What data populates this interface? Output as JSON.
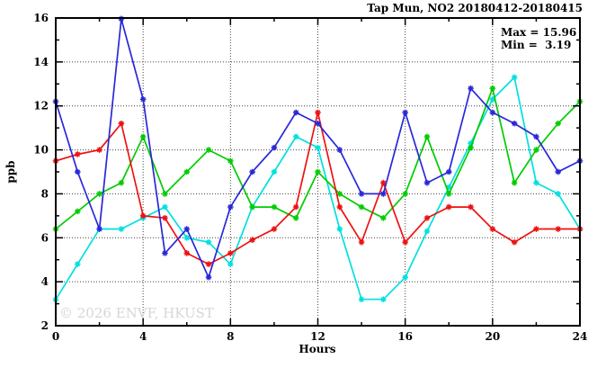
{
  "title": "Tap Mun, NO2 20180412-20180415",
  "annotation": {
    "max_label": "Max = 15.96",
    "min_label": "Min =  3.19"
  },
  "watermark": "© 2026 ENVF, HKUST",
  "chart_data": {
    "type": "line",
    "title": "Tap Mun, NO2 20180412-20180415",
    "xlabel": "Hours",
    "ylabel": "ppb",
    "xlim": [
      0,
      24
    ],
    "ylim": [
      2,
      16
    ],
    "x_tick_step": 2,
    "x_labeled_ticks": [
      0,
      4,
      8,
      12,
      16,
      20,
      24
    ],
    "y_tick_step": 1,
    "y_labeled_ticks": [
      2,
      4,
      6,
      8,
      10,
      12,
      14,
      16
    ],
    "grid_x": [
      4,
      8,
      12,
      16,
      20
    ],
    "grid_y": [
      4,
      6,
      8,
      10,
      12,
      14
    ],
    "legend": "none",
    "grid": "dotted",
    "max_value": 15.96,
    "min_value": 3.19,
    "x": [
      0,
      1,
      2,
      3,
      4,
      5,
      6,
      7,
      8,
      9,
      10,
      11,
      12,
      13,
      14,
      15,
      16,
      17,
      18,
      19,
      20,
      21,
      22,
      23,
      24
    ],
    "series": [
      {
        "name": "cyan-line",
        "color": "#00e0e0",
        "values": [
          3.19,
          4.8,
          6.4,
          6.4,
          6.9,
          7.4,
          6.0,
          5.8,
          4.8,
          7.4,
          9.0,
          10.6,
          10.1,
          6.4,
          3.2,
          3.2,
          4.2,
          6.3,
          8.3,
          10.3,
          12.3,
          13.3,
          8.5,
          8.0,
          6.4
        ]
      },
      {
        "name": "green-line",
        "color": "#00cc00",
        "values": [
          6.4,
          7.2,
          8.0,
          8.5,
          10.6,
          8.0,
          9.0,
          10.0,
          9.5,
          7.4,
          7.4,
          6.9,
          9.0,
          8.0,
          7.4,
          6.9,
          8.0,
          10.6,
          8.0,
          10.1,
          12.8,
          8.5,
          10.0,
          11.2,
          12.2
        ]
      },
      {
        "name": "red-line",
        "color": "#ee1111",
        "values": [
          9.5,
          9.8,
          10.0,
          11.2,
          7.0,
          6.9,
          5.3,
          4.8,
          5.3,
          5.9,
          6.4,
          7.4,
          11.7,
          7.4,
          5.8,
          8.5,
          5.8,
          6.9,
          7.4,
          7.4,
          6.4,
          5.8,
          6.4,
          6.4,
          6.4
        ]
      },
      {
        "name": "blue-line",
        "color": "#2828d8",
        "values": [
          12.2,
          9.0,
          6.4,
          15.96,
          12.3,
          5.3,
          6.4,
          4.2,
          7.4,
          9.0,
          10.1,
          11.7,
          11.2,
          10.0,
          8.0,
          8.0,
          11.7,
          8.5,
          9.0,
          12.8,
          11.7,
          11.2,
          10.6,
          9.0,
          9.5
        ]
      }
    ]
  }
}
